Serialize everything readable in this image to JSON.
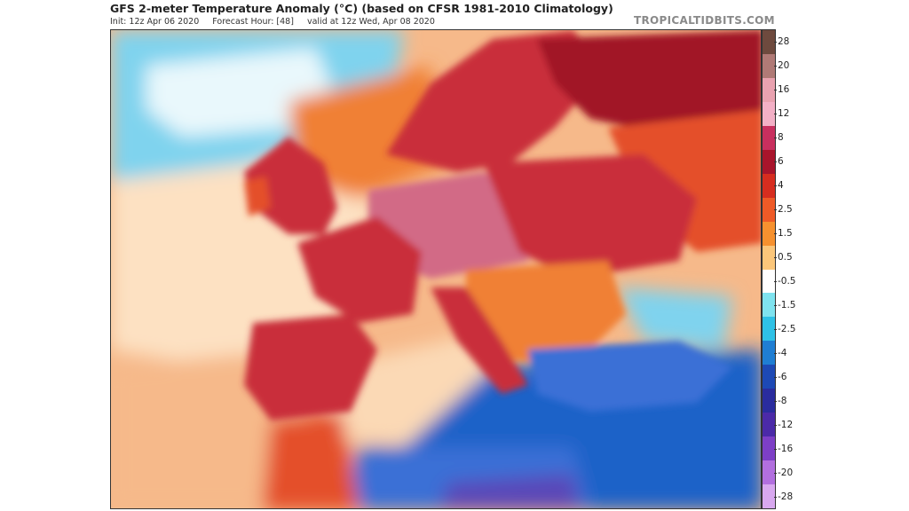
{
  "header": {
    "title": "GFS 2-meter Temperature Anomaly (°C) (based on CFSR 1981-2010 Climatology)",
    "init": "Init: 12z Apr 06 2020",
    "forecast_hour": "Forecast Hour: [48]",
    "valid": "valid at 12z Wed, Apr 08 2020",
    "brand": "TROPICALTIDBITS.COM"
  },
  "colorbar": {
    "labels": [
      "28",
      "20",
      "16",
      "12",
      "8",
      "6",
      "4",
      "2.5",
      "1.5",
      "0.5",
      "-0.5",
      "-1.5",
      "-2.5",
      "-4",
      "-6",
      "-8",
      "-12",
      "-16",
      "-20",
      "-28"
    ],
    "colors": [
      "#6e4a3e",
      "#b07a76",
      "#e9a2b0",
      "#f3b0c6",
      "#c82f5e",
      "#a8142b",
      "#d62d1f",
      "#ee5a27",
      "#f6912f",
      "#fbc67a",
      "#ffffff",
      "#7fe3ef",
      "#2fc1e6",
      "#1f7ed3",
      "#1d49b5",
      "#2a2c9e",
      "#4b2aa8",
      "#7d3fc6",
      "#b26fdf",
      "#d8a8ef"
    ]
  },
  "map": {
    "colors": {
      "ocean_atlantic": "#f6b98a",
      "ocean_north": "#7fd3ee",
      "arctic": "#e9f8fc",
      "ocean_pale": "#fde1c2",
      "med_east": "#1f62c8",
      "med_west": "#fbd9b5",
      "land_hot": "#c92d3a",
      "land_very_hot": "#a11626",
      "land_pink": "#d26a86",
      "land_warm": "#e44f2a",
      "land_orange": "#f08034",
      "africa_cold": "#3a6fd6",
      "africa_purple": "#5a46b8"
    }
  }
}
